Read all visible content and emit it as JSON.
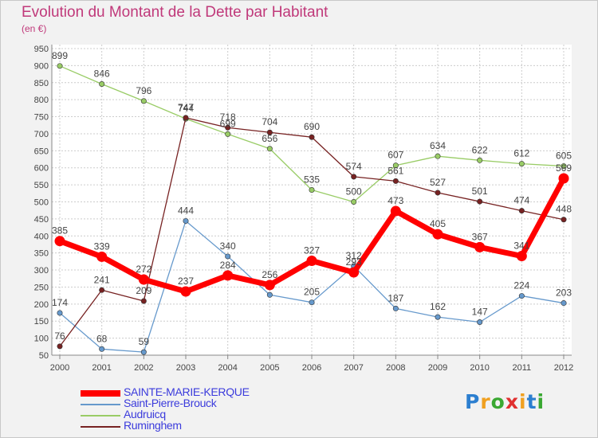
{
  "title": "Evolution du Montant de la Dette par Habitant",
  "subtitle": "(en €)",
  "chart_data": {
    "type": "line",
    "title": "Evolution du Montant de la Dette par Habitant",
    "subtitle": "(en €)",
    "xlabel": "",
    "ylabel": "",
    "x": [
      "2000",
      "2001",
      "2002",
      "2003",
      "2004",
      "2005",
      "2006",
      "2007",
      "2008",
      "2009",
      "2010",
      "2011",
      "2012"
    ],
    "yticks": [
      50,
      100,
      150,
      200,
      250,
      300,
      350,
      400,
      450,
      500,
      550,
      600,
      650,
      700,
      750,
      800,
      850,
      900,
      950
    ],
    "ylim": [
      50,
      950
    ],
    "grid": true,
    "legend_position": "bottom-left",
    "series": [
      {
        "name": "SAINTE-MARIE-KERQUE",
        "color": "#ff0000",
        "width": 7,
        "values": [
          385,
          339,
          272,
          237,
          284,
          256,
          327,
          293,
          473,
          405,
          367,
          341,
          569
        ],
        "labels": [
          "385",
          "339",
          "272",
          "237",
          "284",
          "256",
          "327",
          "293",
          "473",
          "405",
          "367",
          "341",
          "569"
        ]
      },
      {
        "name": "Saint-Pierre-Brouck",
        "color": "#6699cc",
        "width": 1.3,
        "values": [
          174,
          68,
          59,
          444,
          340,
          227,
          205,
          312,
          187,
          162,
          147,
          224,
          203
        ],
        "labels": [
          "174",
          "68",
          "59",
          "444",
          "340",
          "",
          "205",
          "312",
          "187",
          "162",
          "147",
          "224",
          "203"
        ]
      },
      {
        "name": "Audruicq",
        "color": "#99cc66",
        "width": 1.3,
        "values": [
          899,
          846,
          796,
          744,
          699,
          656,
          535,
          500,
          607,
          634,
          622,
          612,
          605
        ],
        "labels": [
          "899",
          "846",
          "796",
          "744",
          "699",
          "656",
          "535",
          "500",
          "607",
          "634",
          "622",
          "612",
          "605"
        ]
      },
      {
        "name": "Ruminghem",
        "color": "#772222",
        "width": 1.3,
        "values": [
          76,
          241,
          209,
          747,
          718,
          704,
          690,
          574,
          561,
          527,
          501,
          474,
          448
        ],
        "labels": [
          "76",
          "241",
          "209",
          "747",
          "718",
          "704",
          "690",
          "574",
          "561",
          "527",
          "501",
          "474",
          "448"
        ]
      }
    ]
  },
  "logo": {
    "letters": [
      "P",
      "r",
      "o",
      "x",
      "i",
      "t",
      "i"
    ],
    "colors": [
      "#2c7fd0",
      "#f0a020",
      "#3aa832",
      "#e03030",
      "#f0a020",
      "#2c7fd0",
      "#3aa832"
    ]
  }
}
